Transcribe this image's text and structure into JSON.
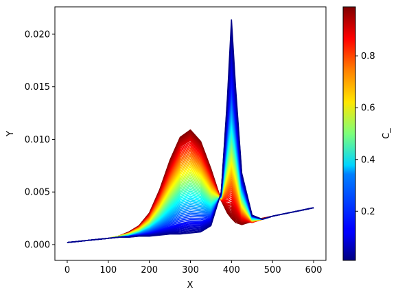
{
  "chart_data": {
    "type": "line",
    "title": "",
    "xlabel": "X",
    "ylabel": "Y",
    "xlim": [
      -30,
      630
    ],
    "ylim": [
      -0.0015,
      0.0226
    ],
    "xticks": [
      "0",
      "100",
      "200",
      "300",
      "400",
      "500",
      "600"
    ],
    "xtick_values": [
      0,
      100,
      200,
      300,
      400,
      500,
      600
    ],
    "yticks": [
      "0.000",
      "0.005",
      "0.010",
      "0.015",
      "0.020"
    ],
    "ytick_values": [
      0,
      0.005,
      0.01,
      0.015,
      0.02
    ],
    "grid": false,
    "colormap": "jet",
    "colorbar": {
      "label": "C_",
      "range": [
        0.01,
        0.99
      ],
      "ticks": [
        "0.2",
        "0.4",
        "0.6",
        "0.8"
      ],
      "tick_values": [
        0.2,
        0.4,
        0.6,
        0.8
      ]
    },
    "x": [
      0,
      25,
      50,
      75,
      100,
      125,
      150,
      175,
      200,
      225,
      250,
      275,
      300,
      325,
      350,
      375,
      390,
      400,
      410,
      425,
      450,
      475,
      500,
      525,
      550,
      575,
      600
    ],
    "series": [
      {
        "c": 0.99,
        "values": [
          0.0002,
          0.0003,
          0.0004,
          0.0005,
          0.0006,
          0.0008,
          0.0012,
          0.0018,
          0.003,
          0.0052,
          0.008,
          0.0102,
          0.0109,
          0.0098,
          0.0072,
          0.0042,
          0.003,
          0.0025,
          0.0021,
          0.0019,
          0.0022,
          0.0025,
          0.0027,
          0.0029,
          0.0031,
          0.0033,
          0.0035
        ]
      },
      {
        "c": 0.9,
        "values": [
          0.0002,
          0.0003,
          0.0004,
          0.0005,
          0.0006,
          0.0008,
          0.0011,
          0.0017,
          0.0028,
          0.0048,
          0.0072,
          0.0093,
          0.0099,
          0.0089,
          0.0066,
          0.0042,
          0.0039,
          0.004,
          0.0034,
          0.0024,
          0.0021,
          0.0024,
          0.0027,
          0.0029,
          0.0031,
          0.0033,
          0.0035
        ]
      },
      {
        "c": 0.75,
        "values": [
          0.0002,
          0.0003,
          0.0004,
          0.0005,
          0.0006,
          0.0008,
          0.0011,
          0.0016,
          0.0025,
          0.0041,
          0.0061,
          0.0079,
          0.0084,
          0.0076,
          0.0058,
          0.0043,
          0.0053,
          0.006,
          0.005,
          0.0031,
          0.0022,
          0.0024,
          0.0027,
          0.0029,
          0.0031,
          0.0033,
          0.0035
        ]
      },
      {
        "c": 0.6,
        "values": [
          0.0002,
          0.0003,
          0.0004,
          0.0005,
          0.0006,
          0.0008,
          0.001,
          0.0014,
          0.0021,
          0.0034,
          0.005,
          0.0064,
          0.0069,
          0.0063,
          0.0049,
          0.0044,
          0.0068,
          0.0081,
          0.0066,
          0.0038,
          0.0023,
          0.0024,
          0.0027,
          0.0029,
          0.0031,
          0.0033,
          0.0035
        ]
      },
      {
        "c": 0.45,
        "values": [
          0.0002,
          0.0003,
          0.0004,
          0.0005,
          0.0006,
          0.0007,
          0.0009,
          0.0012,
          0.0018,
          0.0027,
          0.0039,
          0.005,
          0.0054,
          0.005,
          0.0041,
          0.0045,
          0.0082,
          0.0102,
          0.0082,
          0.0045,
          0.0024,
          0.0024,
          0.0027,
          0.0029,
          0.0031,
          0.0033,
          0.0035
        ]
      },
      {
        "c": 0.3,
        "values": [
          0.0002,
          0.0003,
          0.0004,
          0.0005,
          0.0006,
          0.0007,
          0.0008,
          0.0011,
          0.0015,
          0.0021,
          0.0028,
          0.0035,
          0.0038,
          0.0036,
          0.0033,
          0.0046,
          0.0097,
          0.0125,
          0.0098,
          0.0052,
          0.0026,
          0.0024,
          0.0027,
          0.0029,
          0.0031,
          0.0033,
          0.0035
        ]
      },
      {
        "c": 0.15,
        "values": [
          0.0002,
          0.0003,
          0.0004,
          0.0005,
          0.0006,
          0.0007,
          0.0008,
          0.0009,
          0.0011,
          0.0014,
          0.0017,
          0.002,
          0.0022,
          0.0022,
          0.0025,
          0.0048,
          0.0115,
          0.0155,
          0.0118,
          0.006,
          0.0027,
          0.0024,
          0.0027,
          0.0029,
          0.0031,
          0.0033,
          0.0035
        ]
      },
      {
        "c": 0.02,
        "values": [
          0.0002,
          0.0003,
          0.0004,
          0.0005,
          0.0006,
          0.0007,
          0.0007,
          0.0008,
          0.0008,
          0.0009,
          0.001,
          0.001,
          0.0011,
          0.0012,
          0.0018,
          0.005,
          0.014,
          0.0214,
          0.015,
          0.0068,
          0.0028,
          0.0024,
          0.0027,
          0.0029,
          0.0031,
          0.0033,
          0.0035
        ]
      }
    ]
  }
}
